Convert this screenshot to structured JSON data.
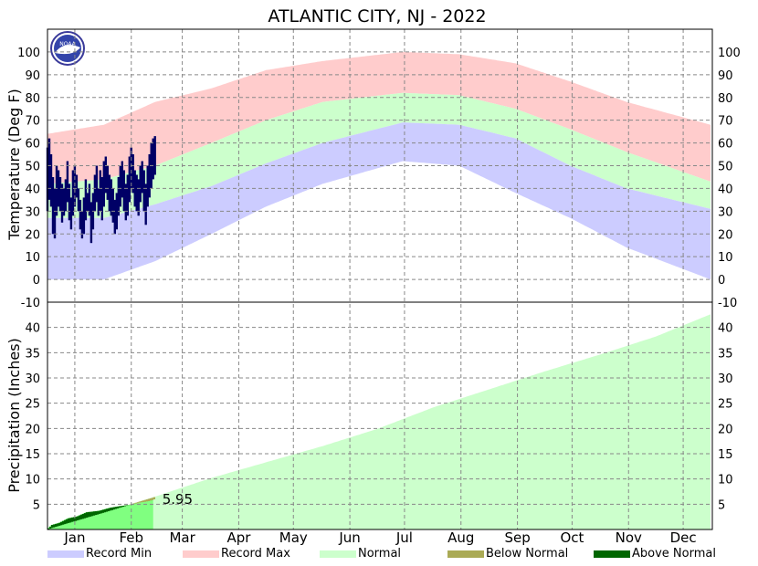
{
  "chart_data": {
    "title": "ATLANTIC CITY, NJ - 2022",
    "logo_text": "NOAA",
    "colors": {
      "record_min": "#ccccff",
      "record_max": "#ffcccc",
      "normal": "#ccffcc",
      "below_normal": "#aaaa55",
      "above_normal": "#006600",
      "precip_actual": "#80ff80",
      "observed_temp": "#000066"
    },
    "months": [
      "Jan",
      "Feb",
      "Mar",
      "Apr",
      "May",
      "Jun",
      "Jul",
      "Aug",
      "Sep",
      "Oct",
      "Nov",
      "Dec"
    ],
    "temperature": {
      "type": "bar",
      "ylabel": "Temperature (Deg F)",
      "ylim": [
        -10,
        110
      ],
      "yticks": [
        -10,
        0,
        10,
        20,
        30,
        40,
        50,
        60,
        70,
        80,
        90,
        100
      ],
      "normal_high": [
        {
          "day": 1,
          "value": 42
        },
        {
          "day": 32,
          "value": 44
        },
        {
          "day": 60,
          "value": 50
        },
        {
          "day": 91,
          "value": 60
        },
        {
          "day": 121,
          "value": 70
        },
        {
          "day": 152,
          "value": 78
        },
        {
          "day": 196,
          "value": 82
        },
        {
          "day": 227,
          "value": 81
        },
        {
          "day": 258,
          "value": 75
        },
        {
          "day": 288,
          "value": 66
        },
        {
          "day": 319,
          "value": 56
        },
        {
          "day": 365,
          "value": 43
        }
      ],
      "normal_low": [
        {
          "day": 1,
          "value": 27
        },
        {
          "day": 32,
          "value": 27
        },
        {
          "day": 60,
          "value": 33
        },
        {
          "day": 91,
          "value": 41
        },
        {
          "day": 121,
          "value": 51
        },
        {
          "day": 152,
          "value": 60
        },
        {
          "day": 196,
          "value": 69
        },
        {
          "day": 227,
          "value": 68
        },
        {
          "day": 258,
          "value": 62
        },
        {
          "day": 288,
          "value": 50
        },
        {
          "day": 319,
          "value": 40
        },
        {
          "day": 365,
          "value": 31
        }
      ],
      "record_high": [
        {
          "day": 1,
          "value": 64
        },
        {
          "day": 32,
          "value": 68
        },
        {
          "day": 60,
          "value": 78
        },
        {
          "day": 91,
          "value": 84
        },
        {
          "day": 121,
          "value": 92
        },
        {
          "day": 152,
          "value": 96
        },
        {
          "day": 196,
          "value": 100
        },
        {
          "day": 227,
          "value": 99
        },
        {
          "day": 258,
          "value": 95
        },
        {
          "day": 288,
          "value": 87
        },
        {
          "day": 319,
          "value": 78
        },
        {
          "day": 365,
          "value": 68
        }
      ],
      "record_low": [
        {
          "day": 1,
          "value": 0
        },
        {
          "day": 32,
          "value": 0
        },
        {
          "day": 60,
          "value": 8
        },
        {
          "day": 91,
          "value": 20
        },
        {
          "day": 121,
          "value": 32
        },
        {
          "day": 152,
          "value": 42
        },
        {
          "day": 196,
          "value": 52
        },
        {
          "day": 227,
          "value": 50
        },
        {
          "day": 258,
          "value": 38
        },
        {
          "day": 288,
          "value": 27
        },
        {
          "day": 319,
          "value": 14
        },
        {
          "day": 365,
          "value": 0
        }
      ],
      "observed": [
        [
          30,
          58
        ],
        [
          35,
          62
        ],
        [
          32,
          55
        ],
        [
          20,
          45
        ],
        [
          18,
          40
        ],
        [
          28,
          50
        ],
        [
          32,
          48
        ],
        [
          30,
          45
        ],
        [
          25,
          42
        ],
        [
          28,
          40
        ],
        [
          30,
          44
        ],
        [
          34,
          52
        ],
        [
          26,
          42
        ],
        [
          22,
          36
        ],
        [
          28,
          48
        ],
        [
          32,
          50
        ],
        [
          36,
          46
        ],
        [
          30,
          40
        ],
        [
          22,
          35
        ],
        [
          18,
          30
        ],
        [
          20,
          36
        ],
        [
          26,
          44
        ],
        [
          30,
          38
        ],
        [
          28,
          42
        ],
        [
          16,
          34
        ],
        [
          22,
          38
        ],
        [
          30,
          46
        ],
        [
          34,
          50
        ],
        [
          28,
          40
        ],
        [
          30,
          48
        ],
        [
          26,
          45
        ],
        [
          32,
          52
        ],
        [
          38,
          54
        ],
        [
          35,
          50
        ],
        [
          30,
          46
        ],
        [
          28,
          44
        ],
        [
          25,
          40
        ],
        [
          20,
          35
        ],
        [
          22,
          38
        ],
        [
          28,
          45
        ],
        [
          32,
          50
        ],
        [
          36,
          52
        ],
        [
          30,
          48
        ],
        [
          26,
          42
        ],
        [
          28,
          46
        ],
        [
          34,
          54
        ],
        [
          40,
          58
        ],
        [
          38,
          55
        ],
        [
          32,
          48
        ],
        [
          30,
          46
        ],
        [
          28,
          44
        ],
        [
          34,
          50
        ],
        [
          38,
          52
        ],
        [
          30,
          48
        ],
        [
          24,
          42
        ],
        [
          32,
          50
        ],
        [
          36,
          55
        ],
        [
          40,
          60
        ],
        [
          44,
          62
        ],
        [
          46,
          63
        ]
      ]
    },
    "precipitation": {
      "type": "area",
      "ylabel": "Precipitation (Inches)",
      "ylim": [
        0,
        45
      ],
      "yticks": [
        5,
        10,
        15,
        20,
        25,
        30,
        35,
        40
      ],
      "normal_cumulative": [
        {
          "day": 1,
          "value": 0.1
        },
        {
          "day": 32,
          "value": 3.4
        },
        {
          "day": 60,
          "value": 6.5
        },
        {
          "day": 91,
          "value": 10.2
        },
        {
          "day": 121,
          "value": 13.3
        },
        {
          "day": 152,
          "value": 16.5
        },
        {
          "day": 182,
          "value": 19.9
        },
        {
          "day": 213,
          "value": 24.2
        },
        {
          "day": 244,
          "value": 27.8
        },
        {
          "day": 274,
          "value": 31.3
        },
        {
          "day": 305,
          "value": 34.7
        },
        {
          "day": 335,
          "value": 38.2
        },
        {
          "day": 365,
          "value": 42.6
        }
      ],
      "actual_cumulative": [
        {
          "day": 1,
          "value": 0.2
        },
        {
          "day": 3,
          "value": 0.9
        },
        {
          "day": 7,
          "value": 1.3
        },
        {
          "day": 12,
          "value": 2.2
        },
        {
          "day": 17,
          "value": 2.6
        },
        {
          "day": 22,
          "value": 3.4
        },
        {
          "day": 29,
          "value": 3.7
        },
        {
          "day": 35,
          "value": 4.3
        },
        {
          "day": 40,
          "value": 4.6
        },
        {
          "day": 46,
          "value": 4.9
        },
        {
          "day": 51,
          "value": 5.3
        },
        {
          "day": 56,
          "value": 5.6
        },
        {
          "day": 59,
          "value": 5.95
        }
      ],
      "current_total_label": "5.95"
    },
    "legend": [
      {
        "label": "Record Min",
        "color": "#ccccff"
      },
      {
        "label": "Record Max",
        "color": "#ffcccc"
      },
      {
        "label": "Normal",
        "color": "#ccffcc"
      },
      {
        "label": "Below Normal",
        "color": "#aaaa55"
      },
      {
        "label": "Above Normal",
        "color": "#006600"
      }
    ]
  }
}
